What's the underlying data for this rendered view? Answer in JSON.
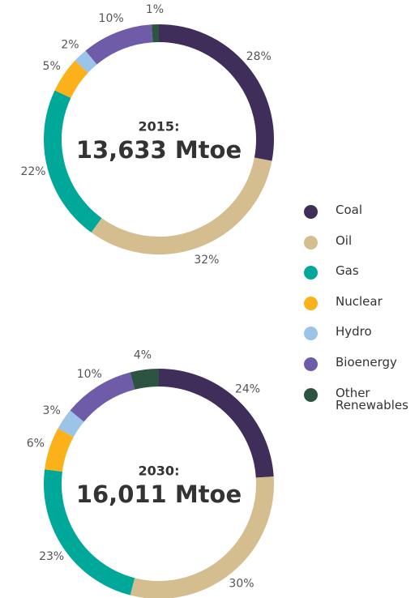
{
  "chart_data": [
    {
      "type": "pie",
      "center_label": "2015:",
      "total_label": "13,633 Mtoe",
      "categories": [
        "Coal",
        "Oil",
        "Gas",
        "Nuclear",
        "Hydro",
        "Bioenergy",
        "Other Renewables"
      ],
      "values": [
        28,
        32,
        22,
        5,
        2,
        10,
        1
      ],
      "value_labels": [
        "28%",
        "32%",
        "22%",
        "5%",
        "2%",
        "10%",
        "1%"
      ],
      "colors": [
        "#3f2d5a",
        "#d4bd8e",
        "#00a89a",
        "#fbb21a",
        "#9cc3e8",
        "#6f5ca8",
        "#2d5442"
      ]
    },
    {
      "type": "pie",
      "center_label": "2030:",
      "total_label": "16,011 Mtoe",
      "categories": [
        "Coal",
        "Oil",
        "Gas",
        "Nuclear",
        "Hydro",
        "Bioenergy",
        "Other Renewables"
      ],
      "values": [
        24,
        30,
        23,
        6,
        3,
        10,
        4
      ],
      "value_labels": [
        "24%",
        "30%",
        "23%",
        "6%",
        "3%",
        "10%",
        "4%"
      ],
      "colors": [
        "#3f2d5a",
        "#d4bd8e",
        "#00a89a",
        "#fbb21a",
        "#9cc3e8",
        "#6f5ca8",
        "#2d5442"
      ]
    }
  ]
}
